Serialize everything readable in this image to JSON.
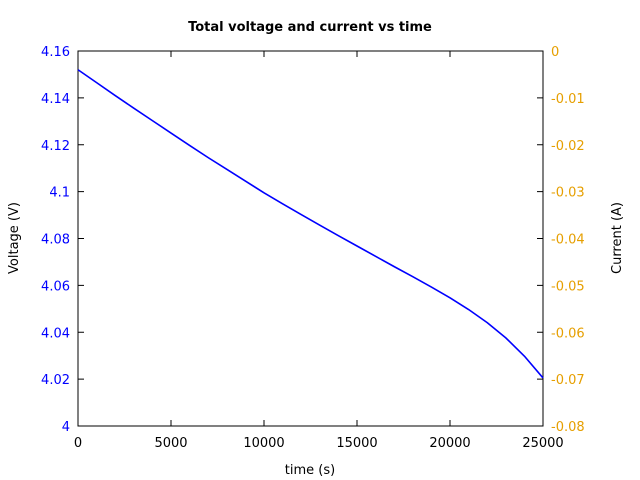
{
  "chart_data": {
    "type": "line",
    "title": "Total voltage and current vs time",
    "xlabel": "time (s)",
    "ylabel": "Voltage (V)",
    "y2label": "Current (A)",
    "xlim": [
      0,
      25000
    ],
    "ylim": [
      4.0,
      4.16
    ],
    "y2lim": [
      -0.08,
      0
    ],
    "x_ticks": [
      "0",
      "5000",
      "10000",
      "15000",
      "20000",
      "25000"
    ],
    "y_ticks": [
      "4",
      "4.02",
      "4.04",
      "4.06",
      "4.08",
      "4.1",
      "4.12",
      "4.14",
      "4.16"
    ],
    "y2_ticks": [
      "-0.08",
      "-0.07",
      "-0.06",
      "-0.05",
      "-0.04",
      "-0.03",
      "-0.02",
      "-0.01",
      "0"
    ],
    "grid": false,
    "colors": {
      "voltage": "#0000ff",
      "current": "#e69f00",
      "axes": "#000000"
    },
    "series": [
      {
        "axis": "left",
        "color": "#0000ff",
        "x": [
          0,
          1000,
          2000,
          3000,
          4000,
          5000,
          6000,
          7000,
          8000,
          9000,
          10000,
          11000,
          12000,
          13000,
          14000,
          15000,
          16000,
          17000,
          18000,
          19000,
          20000,
          21000,
          22000,
          23000,
          24000,
          25000
        ],
        "y": [
          4.152,
          4.1465,
          4.141,
          4.1356,
          4.1303,
          4.125,
          4.1197,
          4.1145,
          4.1095,
          4.1045,
          4.0995,
          4.0948,
          4.0902,
          4.0857,
          4.0812,
          4.0768,
          4.0724,
          4.068,
          4.0637,
          4.0593,
          4.0547,
          4.0497,
          4.0441,
          4.0376,
          4.0298,
          4.0205
        ]
      }
    ]
  }
}
